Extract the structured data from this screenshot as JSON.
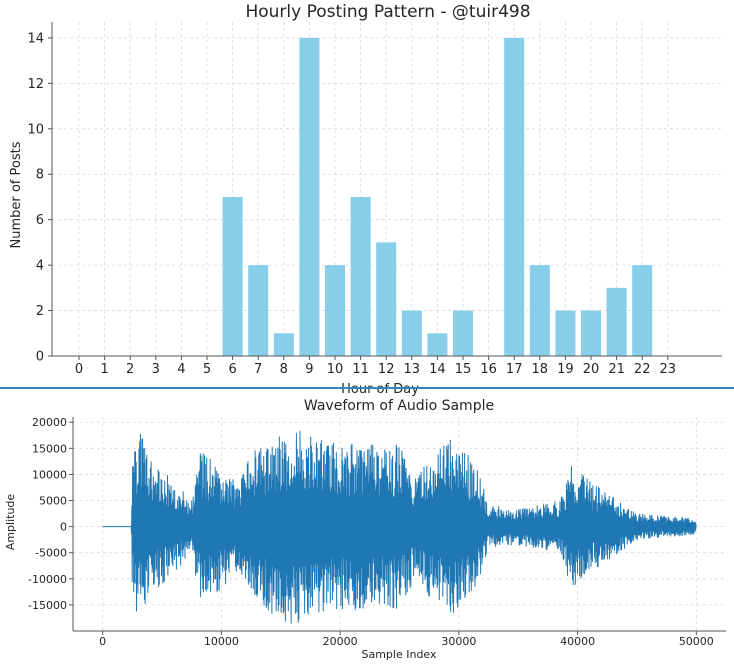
{
  "colors": {
    "bar": "#87CEEB",
    "waveform": "#1f77b4",
    "grid": "#d9d9d9",
    "divider": "#2e86c1"
  },
  "chart_data": [
    {
      "type": "bar",
      "title": "Hourly Posting Pattern - @tuir498",
      "xlabel": "Hour of Day",
      "ylabel": "Number of Posts",
      "categories": [
        "0",
        "1",
        "2",
        "3",
        "4",
        "5",
        "6",
        "7",
        "8",
        "9",
        "10",
        "11",
        "12",
        "13",
        "14",
        "15",
        "16",
        "17",
        "18",
        "19",
        "20",
        "21",
        "22",
        "23"
      ],
      "values": [
        0,
        0,
        0,
        0,
        0,
        0,
        7,
        4,
        1,
        14,
        4,
        7,
        5,
        2,
        1,
        2,
        0,
        14,
        4,
        2,
        2,
        3,
        4,
        0
      ],
      "y_ticks": [
        0,
        2,
        4,
        6,
        8,
        10,
        12,
        14
      ],
      "ylim": [
        0,
        14.7
      ],
      "grid": true
    },
    {
      "type": "line",
      "title": "Waveform of Audio Sample",
      "xlabel": "Sample Index",
      "ylabel": "Amplitude",
      "xlim": [
        -2500,
        52500
      ],
      "ylim": [
        -20000,
        21000
      ],
      "x_ticks": [
        0,
        10000,
        20000,
        30000,
        40000,
        50000
      ],
      "y_ticks": [
        -15000,
        -10000,
        -5000,
        0,
        5000,
        10000,
        15000,
        20000
      ],
      "grid": true,
      "envelope": [
        {
          "x": 0,
          "amp": 0
        },
        {
          "x": 2400,
          "amp": 0
        },
        {
          "x": 2500,
          "amp": 13000
        },
        {
          "x": 3000,
          "amp": 19000
        },
        {
          "x": 4500,
          "amp": 12000
        },
        {
          "x": 6000,
          "amp": 9000
        },
        {
          "x": 7500,
          "amp": 5000
        },
        {
          "x": 8200,
          "amp": 15000
        },
        {
          "x": 10000,
          "amp": 12000
        },
        {
          "x": 11500,
          "amp": 8000
        },
        {
          "x": 12500,
          "amp": 14000
        },
        {
          "x": 14000,
          "amp": 17000
        },
        {
          "x": 16000,
          "amp": 19000
        },
        {
          "x": 18000,
          "amp": 17000
        },
        {
          "x": 20000,
          "amp": 16000
        },
        {
          "x": 22500,
          "amp": 16000
        },
        {
          "x": 25000,
          "amp": 16000
        },
        {
          "x": 26500,
          "amp": 9000
        },
        {
          "x": 27500,
          "amp": 14000
        },
        {
          "x": 29500,
          "amp": 17000
        },
        {
          "x": 31500,
          "amp": 12000
        },
        {
          "x": 32500,
          "amp": 4000
        },
        {
          "x": 35000,
          "amp": 3500
        },
        {
          "x": 37500,
          "amp": 4500
        },
        {
          "x": 38500,
          "amp": 5000
        },
        {
          "x": 39500,
          "amp": 12000
        },
        {
          "x": 41500,
          "amp": 8000
        },
        {
          "x": 43000,
          "amp": 6000
        },
        {
          "x": 45000,
          "amp": 2500
        },
        {
          "x": 50000,
          "amp": 1500
        }
      ]
    }
  ]
}
